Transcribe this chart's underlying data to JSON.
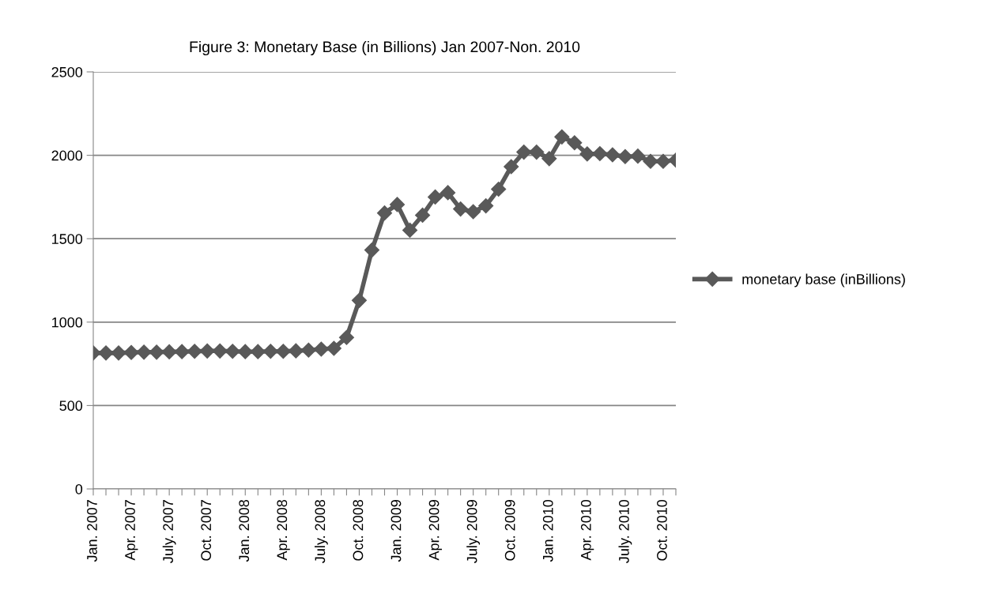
{
  "chart_data": {
    "type": "line",
    "title": "Figure 3: Monetary Base (in Billions) Jan 2007-Non. 2010",
    "categories": [
      "Jan. 2007",
      null,
      null,
      "Apr. 2007",
      null,
      null,
      "July. 2007",
      null,
      null,
      "Oct. 2007",
      null,
      null,
      "Jan. 2008",
      null,
      null,
      "Apr. 2008",
      null,
      null,
      "July. 2008",
      null,
      null,
      "Oct. 2008",
      null,
      null,
      "Jan. 2009",
      null,
      null,
      "Apr. 2009",
      null,
      null,
      "July. 2009",
      null,
      null,
      "Oct. 2009",
      null,
      null,
      "Jan. 2010",
      null,
      null,
      "Apr. 2010",
      null,
      null,
      "July. 2010",
      null,
      null,
      "Oct. 2010",
      null
    ],
    "series": [
      {
        "name": "monetary base (inBillions)",
        "color": "#595959",
        "values": [
          815,
          815,
          815,
          818,
          820,
          820,
          822,
          823,
          825,
          827,
          827,
          825,
          823,
          823,
          825,
          825,
          828,
          832,
          838,
          843,
          908,
          1130,
          1432,
          1654,
          1705,
          1551,
          1641,
          1750,
          1776,
          1678,
          1662,
          1697,
          1797,
          1932,
          2019,
          2019,
          1980,
          2110,
          2075,
          2008,
          2010,
          2003,
          1992,
          1995,
          1964,
          1964,
          1971
        ]
      }
    ],
    "ylim": [
      0,
      2500
    ],
    "yticks": [
      0,
      500,
      1000,
      1500,
      2000,
      2500
    ],
    "grid": "y",
    "legend": "right",
    "marker": "diamond",
    "line_style": "solid"
  }
}
